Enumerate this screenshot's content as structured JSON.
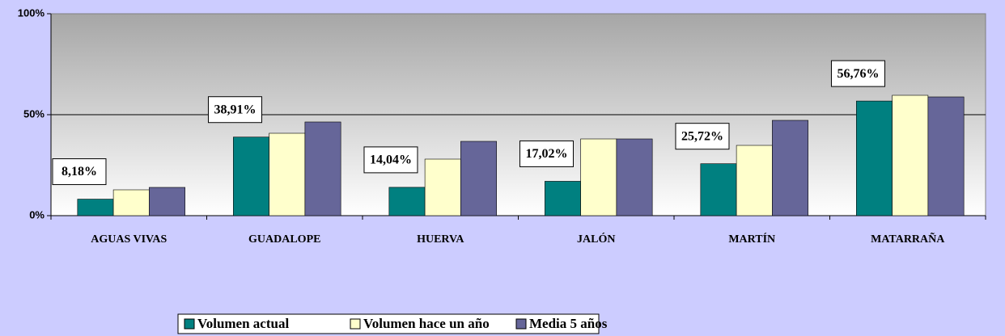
{
  "chart_data": {
    "type": "bar",
    "categories": [
      "AGUAS VIVAS",
      "GUADALOPE",
      "HUERVA",
      "JALÓN",
      "MARTÍN",
      "MATARRAÑA"
    ],
    "series": [
      {
        "name": "Volumen actual",
        "color": "#008080",
        "values": [
          8.18,
          38.91,
          14.04,
          17.02,
          25.72,
          56.76
        ],
        "value_labels": [
          "8,18%",
          "38,91%",
          "14,04%",
          "17,02%",
          "25,72%",
          "56,76%"
        ]
      },
      {
        "name": "Volumen hace un año",
        "color": "#ffffcc",
        "values": [
          12.8,
          40.8,
          28.0,
          38.0,
          34.8,
          59.6
        ]
      },
      {
        "name": "Media 5 años",
        "color": "#666699",
        "values": [
          14.0,
          46.4,
          36.8,
          38.0,
          47.2,
          58.8
        ]
      }
    ],
    "ylim": [
      0,
      100
    ],
    "yticks": [
      {
        "value": 0,
        "label": "0%"
      },
      {
        "value": 50,
        "label": "50%"
      },
      {
        "value": 100,
        "label": "100%"
      }
    ],
    "grid": true,
    "legend": "bottom"
  }
}
